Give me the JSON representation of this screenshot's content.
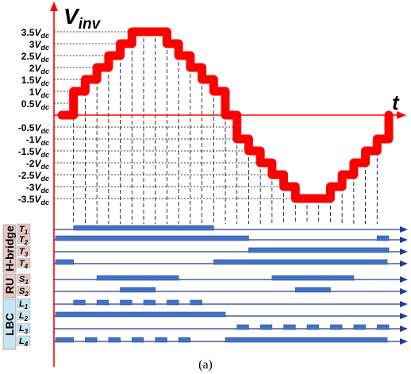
{
  "figure": {
    "title_main": "V",
    "title_sub": "inv",
    "time_label": "t",
    "caption": "(a)",
    "level_labels": {
      "pos": [
        {
          "c": "3.5",
          "v": 3.5
        },
        {
          "c": "3",
          "v": 3.0
        },
        {
          "c": "2.5",
          "v": 2.5
        },
        {
          "c": "2",
          "v": 2.0
        },
        {
          "c": "1.5",
          "v": 1.5
        },
        {
          "c": "1",
          "v": 1.0
        },
        {
          "c": "0.5",
          "v": 0.5
        }
      ],
      "neg": [
        {
          "c": "-0.5",
          "v": -0.5
        },
        {
          "c": "-1",
          "v": -1.0
        },
        {
          "c": "-1.5",
          "v": -1.5
        },
        {
          "c": "-2",
          "v": -2.0
        },
        {
          "c": "-2.5",
          "v": -2.5
        },
        {
          "c": "-3",
          "v": -3.0
        },
        {
          "c": "-3.5",
          "v": -3.5
        }
      ],
      "unit_main": "V",
      "unit_sub": "dc"
    },
    "groups": [
      {
        "label": "H-bridge",
        "color": "#e8c8c4"
      },
      {
        "label": "RU",
        "color": "#e8c8c4"
      },
      {
        "label": "LBC",
        "color": "#c8e4ee"
      }
    ],
    "signals": [
      {
        "main": "T",
        "sub": "1"
      },
      {
        "main": "T",
        "sub": "2"
      },
      {
        "main": "T",
        "sub": "3"
      },
      {
        "main": "T",
        "sub": "4"
      },
      {
        "main": "S",
        "sub": "1"
      },
      {
        "main": "S",
        "sub": "2"
      },
      {
        "main": "L",
        "sub": "1"
      },
      {
        "main": "L",
        "sub": "2"
      },
      {
        "main": "L",
        "sub": "3"
      },
      {
        "main": "L",
        "sub": "4"
      }
    ],
    "colors": {
      "waveform": "#ff0000",
      "pulse_fill": "#4472c4",
      "pulse_stroke": "#2f4f8a",
      "axis": "#000000",
      "signal_line": "#1f3d99"
    }
  }
}
